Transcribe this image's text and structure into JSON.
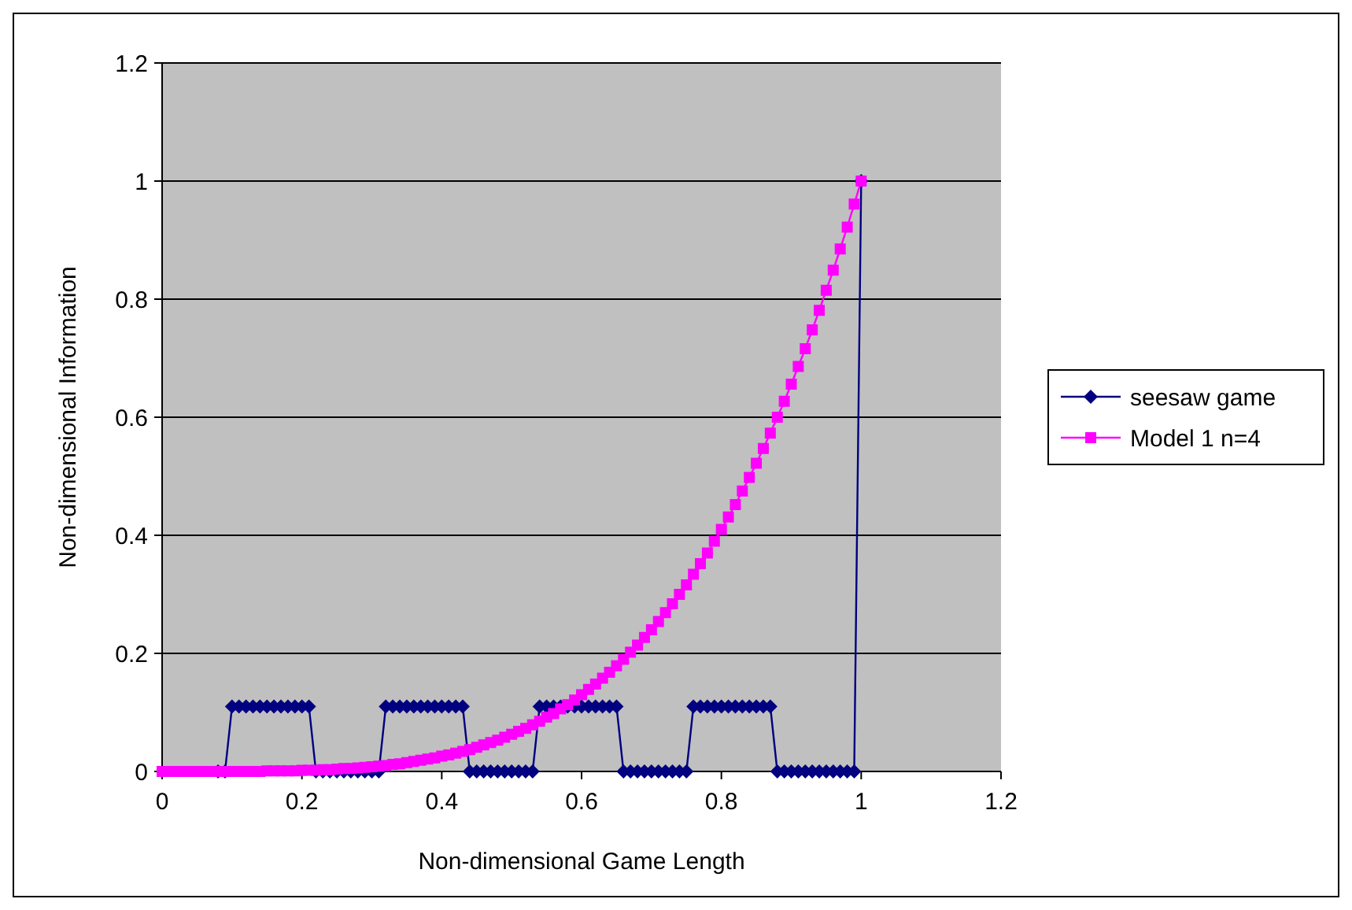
{
  "chart_data": {
    "type": "line",
    "xlabel": "Non-dimensional Game Length",
    "ylabel": "Non-dimensional Information",
    "x": [
      0,
      0.01,
      0.02,
      0.03,
      0.04,
      0.05,
      0.06,
      0.07,
      0.08,
      0.09,
      0.1,
      0.11,
      0.12,
      0.13,
      0.14,
      0.15,
      0.16,
      0.17,
      0.18,
      0.19,
      0.2,
      0.21,
      0.22,
      0.23,
      0.24,
      0.25,
      0.26,
      0.27,
      0.28,
      0.29,
      0.3,
      0.31,
      0.32,
      0.33,
      0.34,
      0.35,
      0.36,
      0.37,
      0.38,
      0.39,
      0.4,
      0.41,
      0.42,
      0.43,
      0.44,
      0.45,
      0.46,
      0.47,
      0.48,
      0.49,
      0.5,
      0.51,
      0.52,
      0.53,
      0.54,
      0.55,
      0.56,
      0.57,
      0.58,
      0.59,
      0.6,
      0.61,
      0.62,
      0.63,
      0.64,
      0.65,
      0.66,
      0.67,
      0.68,
      0.69,
      0.7,
      0.71,
      0.72,
      0.73,
      0.74,
      0.75,
      0.76,
      0.77,
      0.78,
      0.79,
      0.8,
      0.81,
      0.82,
      0.83,
      0.84,
      0.85,
      0.86,
      0.87,
      0.88,
      0.89,
      0.9,
      0.91,
      0.92,
      0.93,
      0.94,
      0.95,
      0.96,
      0.97,
      0.98,
      0.99,
      1
    ],
    "series": [
      {
        "name": "seesaw game",
        "color": "#000080",
        "marker": "diamond",
        "values": [
          null,
          null,
          null,
          null,
          null,
          null,
          null,
          null,
          0,
          0,
          0.11,
          0.11,
          0.11,
          0.11,
          0.11,
          0.11,
          0.11,
          0.11,
          0.11,
          0.11,
          0.11,
          0.11,
          0,
          0,
          0,
          0,
          0,
          0,
          0,
          0,
          0,
          0,
          0.11,
          0.11,
          0.11,
          0.11,
          0.11,
          0.11,
          0.11,
          0.11,
          0.11,
          0.11,
          0.11,
          0.11,
          0,
          0,
          0,
          0,
          0,
          0,
          0,
          0,
          0,
          0,
          0.11,
          0.11,
          0.11,
          0.11,
          0.11,
          0.11,
          0.11,
          0.11,
          0.11,
          0.11,
          0.11,
          0.11,
          0,
          0,
          0,
          0,
          0,
          0,
          0,
          0,
          0,
          0,
          0.11,
          0.11,
          0.11,
          0.11,
          0.11,
          0.11,
          0.11,
          0.11,
          0.11,
          0.11,
          0.11,
          0.11,
          0,
          0,
          0,
          0,
          0,
          0,
          0,
          0,
          0,
          0,
          0,
          0,
          1
        ]
      },
      {
        "name": "Model 1 n=4",
        "color": "#ff00ff",
        "marker": "square",
        "values": [
          0,
          0,
          0,
          0,
          0,
          0,
          0,
          0,
          0,
          0,
          0,
          0,
          0,
          0,
          0,
          0.001,
          0.001,
          0.001,
          0.001,
          0.001,
          0.002,
          0.002,
          0.002,
          0.003,
          0.003,
          0.004,
          0.005,
          0.005,
          0.006,
          0.007,
          0.008,
          0.009,
          0.01,
          0.012,
          0.013,
          0.015,
          0.017,
          0.019,
          0.021,
          0.023,
          0.026,
          0.028,
          0.031,
          0.034,
          0.037,
          0.041,
          0.045,
          0.049,
          0.053,
          0.058,
          0.063,
          0.068,
          0.073,
          0.079,
          0.085,
          0.092,
          0.098,
          0.106,
          0.113,
          0.121,
          0.13,
          0.139,
          0.148,
          0.158,
          0.168,
          0.179,
          0.19,
          0.202,
          0.214,
          0.227,
          0.24,
          0.254,
          0.269,
          0.284,
          0.3,
          0.316,
          0.334,
          0.352,
          0.37,
          0.39,
          0.41,
          0.431,
          0.452,
          0.475,
          0.498,
          0.522,
          0.547,
          0.573,
          0.6,
          0.627,
          0.656,
          0.686,
          0.716,
          0.748,
          0.781,
          0.815,
          0.849,
          0.885,
          0.922,
          0.961,
          1
        ]
      }
    ],
    "xlim": [
      0,
      1.2
    ],
    "xticks": [
      0,
      0.2,
      0.4,
      0.6,
      0.8,
      1,
      1.2
    ],
    "ylim": [
      0,
      1.2
    ],
    "yticks": [
      0,
      0.2,
      0.4,
      0.6,
      0.8,
      1,
      1.2
    ],
    "grid": "y",
    "legend": "right"
  }
}
